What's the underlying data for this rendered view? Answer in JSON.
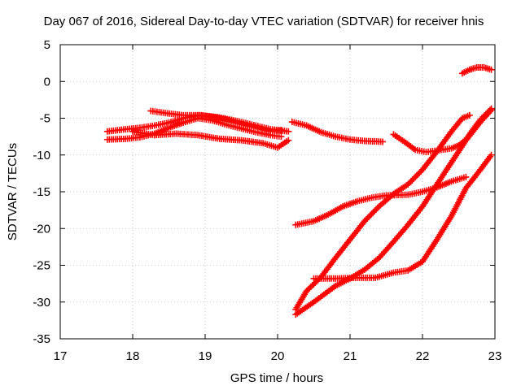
{
  "chart_data": {
    "type": "scatter",
    "title": "Day 067 of 2016, Sidereal Day-to-day VTEC variation (SDTVAR) for receiver hnis",
    "xlabel": "GPS time / hours",
    "ylabel": "SDTVAR / TECUs",
    "xlim": [
      17,
      23
    ],
    "ylim": [
      -35,
      5
    ],
    "x_ticks": [
      17,
      18,
      19,
      20,
      21,
      22,
      23
    ],
    "y_ticks": [
      5,
      0,
      -5,
      -10,
      -15,
      -20,
      -25,
      -30,
      -35
    ],
    "grid": true,
    "marker": "plus",
    "color": "#ff0000",
    "series": [
      {
        "x": [
          17.65,
          17.9,
          18.1,
          18.3,
          18.5,
          18.7,
          18.9,
          19.1,
          19.3,
          19.5,
          19.7,
          19.9,
          20.05
        ],
        "y": [
          -6.8,
          -6.5,
          -6.3,
          -6.0,
          -5.6,
          -5.0,
          -4.6,
          -4.8,
          -5.2,
          -5.8,
          -6.3,
          -6.8,
          -6.6
        ]
      },
      {
        "x": [
          17.65,
          17.9,
          18.1,
          18.3,
          18.5,
          18.7,
          18.9,
          19.1,
          19.3,
          19.5,
          19.7,
          19.9,
          20.05
        ],
        "y": [
          -7.9,
          -7.8,
          -7.6,
          -7.1,
          -6.3,
          -5.6,
          -5.0,
          -5.3,
          -5.9,
          -6.4,
          -6.9,
          -7.3,
          -7.5
        ]
      },
      {
        "x": [
          18.0,
          18.3,
          18.6,
          18.9,
          19.2,
          19.5,
          19.8,
          20.0,
          20.15
        ],
        "y": [
          -6.8,
          -7.3,
          -7.1,
          -7.3,
          -7.8,
          -8.0,
          -8.4,
          -9.0,
          -8.0
        ]
      },
      {
        "x": [
          18.25,
          18.45,
          18.7,
          18.95,
          19.2,
          19.45,
          19.7,
          19.9,
          20.15
        ],
        "y": [
          -4.0,
          -4.3,
          -4.6,
          -4.6,
          -4.9,
          -5.4,
          -6.0,
          -6.5,
          -6.8
        ]
      },
      {
        "x": [
          20.2,
          20.4,
          20.6,
          20.8,
          21.0,
          21.2,
          21.45
        ],
        "y": [
          -5.5,
          -6.0,
          -6.9,
          -7.5,
          -7.9,
          -8.1,
          -8.2
        ]
      },
      {
        "x": [
          21.6,
          21.75,
          21.9,
          22.05,
          22.2,
          22.4,
          22.5,
          22.6,
          22.7,
          22.8,
          22.95
        ],
        "y": [
          -7.2,
          -8.2,
          -9.3,
          -9.6,
          -9.4,
          -9.1,
          -8.7,
          -7.9,
          -6.5,
          -5.2,
          -3.7
        ]
      },
      {
        "x": [
          22.55,
          22.65,
          22.75,
          22.85,
          22.95
        ],
        "y": [
          1.1,
          1.6,
          1.9,
          1.9,
          1.6
        ]
      },
      {
        "x": [
          20.25,
          20.5,
          20.7,
          20.9,
          21.1,
          21.3,
          21.5,
          21.8,
          22.0,
          22.2,
          22.4,
          22.6
        ],
        "y": [
          -19.5,
          -19.0,
          -18.1,
          -17.0,
          -16.3,
          -15.8,
          -15.5,
          -15.4,
          -15.0,
          -14.4,
          -13.6,
          -13.0
        ]
      },
      {
        "x": [
          20.25,
          20.4,
          20.6,
          20.8,
          21.0,
          21.2,
          21.4,
          21.6,
          21.8,
          22.0,
          22.2,
          22.4,
          22.55,
          22.65
        ],
        "y": [
          -31.0,
          -28.5,
          -26.6,
          -24.0,
          -21.5,
          -19.0,
          -17.0,
          -15.3,
          -14.0,
          -12.0,
          -9.5,
          -6.8,
          -5.0,
          -4.6
        ]
      },
      {
        "x": [
          20.25,
          20.5,
          20.8,
          21.0,
          21.2,
          21.4,
          21.6,
          21.8,
          22.0,
          22.2,
          22.4,
          22.6,
          22.8,
          22.95
        ],
        "y": [
          -31.7,
          -30.0,
          -27.8,
          -26.8,
          -25.6,
          -24.0,
          -21.8,
          -19.5,
          -17.0,
          -14.0,
          -11.0,
          -8.0,
          -5.5,
          -3.9
        ]
      },
      {
        "x": [
          20.5,
          20.8,
          21.1,
          21.35,
          21.6,
          21.8,
          22.0,
          22.2,
          22.4,
          22.6,
          22.8,
          22.95
        ],
        "y": [
          -26.8,
          -26.8,
          -26.7,
          -26.7,
          -26.0,
          -25.7,
          -24.5,
          -21.5,
          -18.3,
          -14.5,
          -12.0,
          -10.0
        ]
      }
    ]
  }
}
